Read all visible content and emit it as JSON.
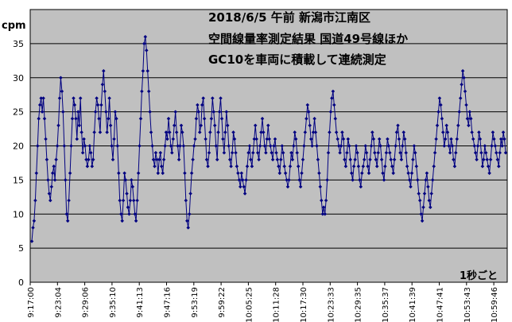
{
  "chart_data": {
    "type": "line",
    "title_lines": [
      "2018/6/5 午前  新潟市江南区",
      "空間線量率測定結果  国道49号線ほか",
      "GC10を車両に積載して連続測定"
    ],
    "ylabel": "cpm",
    "sampling_note": "1秒ごと",
    "ylim": [
      0,
      40
    ],
    "yticks": [
      0,
      5,
      10,
      15,
      20,
      25,
      30,
      35
    ],
    "x_ticks": [
      "9:17:00",
      "9:23:04",
      "9:29:06",
      "9:35:10",
      "9:41:13",
      "9:47:16",
      "9:53:19",
      "9:59:22",
      "10:05:25",
      "10:11:28",
      "10:17:30",
      "10:23:33",
      "10:29:35",
      "10:35:37",
      "10:41:39",
      "10:47:41",
      "10:53:43",
      "10:59:46"
    ],
    "grid": true,
    "legend": "none",
    "colors": {
      "plot_bg": "#c0c0c0",
      "series": "#000080",
      "grid": "#000000"
    },
    "series": [
      {
        "values": [
          6,
          8,
          9,
          12,
          16,
          20,
          24,
          26,
          27,
          25,
          27,
          24,
          21,
          18,
          15,
          13,
          12,
          14,
          16,
          17,
          15,
          18,
          20,
          23,
          27,
          30,
          28,
          25,
          20,
          15,
          10,
          9,
          12,
          16,
          20,
          24,
          27,
          26,
          24,
          21,
          25,
          23,
          27,
          22,
          19,
          21,
          20,
          18,
          17,
          18,
          20,
          19,
          17,
          18,
          22,
          25,
          27,
          26,
          24,
          22,
          26,
          29,
          31,
          28,
          25,
          22,
          24,
          27,
          23,
          20,
          18,
          21,
          25,
          24,
          20,
          16,
          12,
          10,
          9,
          12,
          16,
          15,
          13,
          11,
          10,
          12,
          15,
          14,
          12,
          10,
          9,
          12,
          16,
          20,
          24,
          28,
          31,
          35,
          36,
          34,
          31,
          28,
          25,
          22,
          20,
          18,
          17,
          19,
          18,
          16,
          18,
          19,
          17,
          16,
          18,
          20,
          22,
          21,
          24,
          22,
          20,
          19,
          21,
          23,
          25,
          22,
          20,
          18,
          20,
          23,
          22,
          20,
          16,
          12,
          9,
          8,
          10,
          13,
          16,
          18,
          20,
          21,
          24,
          26,
          25,
          22,
          23,
          26,
          27,
          24,
          21,
          18,
          17,
          19,
          22,
          24,
          27,
          25,
          23,
          20,
          18,
          22,
          25,
          27,
          24,
          21,
          19,
          22,
          25,
          23,
          20,
          18,
          17,
          19,
          22,
          21,
          19,
          17,
          16,
          15,
          14,
          16,
          15,
          14,
          13,
          15,
          17,
          19,
          20,
          18,
          17,
          19,
          21,
          23,
          21,
          19,
          18,
          20,
          22,
          24,
          22,
          20,
          19,
          21,
          23,
          21,
          20,
          19,
          18,
          20,
          21,
          19,
          18,
          17,
          16,
          18,
          20,
          19,
          17,
          16,
          15,
          14,
          15,
          17,
          19,
          18,
          20,
          22,
          21,
          19,
          17,
          15,
          14,
          16,
          18,
          20,
          22,
          24,
          26,
          25,
          23,
          21,
          20,
          22,
          24,
          22,
          20,
          18,
          16,
          14,
          12,
          10,
          11,
          10,
          12,
          15,
          19,
          22,
          25,
          27,
          28,
          26,
          24,
          22,
          21,
          20,
          19,
          20,
          22,
          21,
          18,
          17,
          19,
          21,
          20,
          18,
          16,
          15,
          17,
          18,
          20,
          19,
          17,
          15,
          14,
          16,
          17,
          18,
          20,
          19,
          17,
          16,
          18,
          20,
          22,
          21,
          19,
          18,
          17,
          19,
          21,
          20,
          18,
          16,
          15,
          17,
          19,
          21,
          20,
          19,
          18,
          17,
          16,
          18,
          20,
          22,
          23,
          21,
          19,
          18,
          20,
          22,
          21,
          19,
          17,
          16,
          15,
          14,
          16,
          18,
          20,
          19,
          17,
          15,
          13,
          12,
          10,
          9,
          11,
          13,
          15,
          16,
          14,
          12,
          11,
          13,
          15,
          17,
          19,
          21,
          23,
          25,
          27,
          26,
          24,
          22,
          20,
          21,
          23,
          22,
          20,
          19,
          21,
          20,
          18,
          17,
          19,
          21,
          23,
          25,
          27,
          29,
          31,
          30,
          28,
          26,
          24,
          23,
          25,
          24,
          22,
          21,
          20,
          19,
          18,
          20,
          22,
          21,
          19,
          17,
          18,
          20,
          19,
          18,
          17,
          16,
          18,
          20,
          22,
          21,
          20,
          19,
          18,
          17,
          19,
          21,
          20,
          22,
          21,
          19
        ]
      }
    ]
  }
}
